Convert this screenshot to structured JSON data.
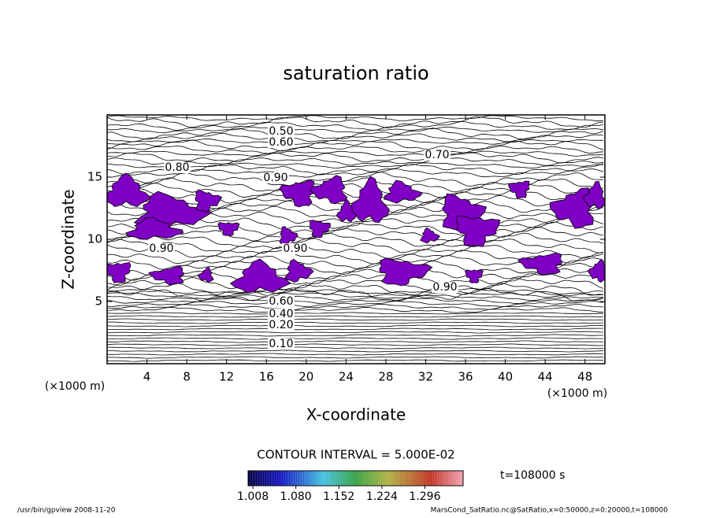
{
  "chart_data": {
    "type": "contour",
    "title": "saturation ratio",
    "xlabel": "X-coordinate",
    "ylabel": "Z-coordinate",
    "xunit": "(×1000 m)",
    "yunit": "(×1000 m)",
    "xlim": [
      0,
      50
    ],
    "ylim": [
      0,
      20
    ],
    "xticks": [
      4,
      8,
      12,
      16,
      20,
      24,
      28,
      32,
      36,
      40,
      44,
      48
    ],
    "yticks": [
      5,
      10,
      15
    ],
    "contour_labels": [
      {
        "value": 0.5,
        "label": "0.50"
      },
      {
        "value": 0.6,
        "label": "0.60"
      },
      {
        "value": 0.7,
        "label": "0.70"
      },
      {
        "value": 0.8,
        "label": "0.80"
      },
      {
        "value": 0.9,
        "label": "0.90"
      },
      {
        "value": 0.9,
        "label": "0.90"
      },
      {
        "value": 0.9,
        "label": "0.90"
      },
      {
        "value": 0.9,
        "label": "0.90"
      },
      {
        "value": 0.6,
        "label": "0.60"
      },
      {
        "value": 0.4,
        "label": "0.40"
      },
      {
        "value": 0.2,
        "label": "0.20"
      },
      {
        "value": 0.1,
        "label": "0.10"
      }
    ],
    "fill_color": "#7f00c4",
    "contour_interval": "CONTOUR INTERVAL = 5.000E-02",
    "time_label": "t=108000 s",
    "clim": [
      1.0,
      1.36
    ],
    "cticks": [
      1.008,
      {
        "value": 1.08,
        "label": "1.080"
      },
      1.152,
      1.224,
      1.296
    ],
    "footer_left": "/usr/bin/gpview  2008-11-20",
    "footer_right": "MarsCond_SatRatio.nc@SatRatio,x=0:50000,z=0:20000,t=108000"
  }
}
